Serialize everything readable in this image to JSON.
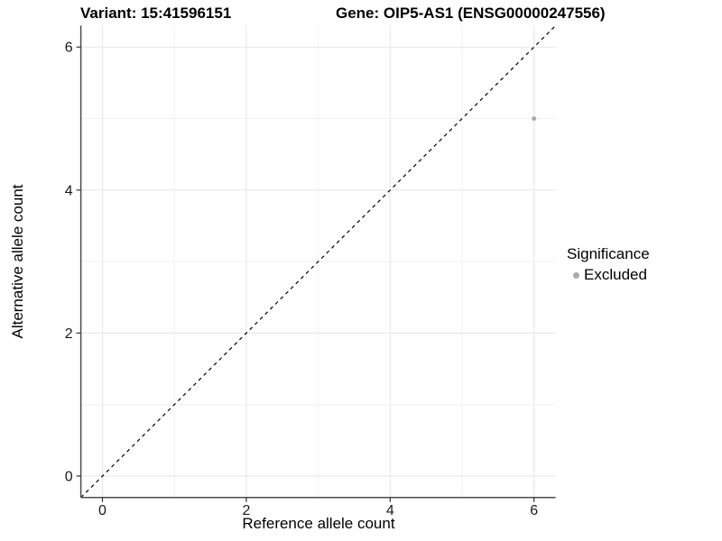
{
  "header": {
    "variant_title": "Variant: 15:41596151",
    "gene_title": "Gene: OIP5-AS1 (ENSG00000247556)"
  },
  "chart_data": {
    "type": "scatter",
    "xlabel": "Reference allele count",
    "ylabel": "Alternative allele count",
    "xlim": [
      -0.3,
      6.3
    ],
    "ylim": [
      -0.3,
      6.3
    ],
    "x_ticks": [
      0,
      2,
      4,
      6
    ],
    "y_ticks": [
      0,
      2,
      4,
      6
    ],
    "x_minor_gridlines": [
      1,
      3,
      5
    ],
    "y_minor_gridlines": [
      1,
      3,
      5
    ],
    "grid": true,
    "identity_line": {
      "style": "dashed",
      "slope": 1,
      "intercept": 0,
      "color": "#000000"
    },
    "series": [
      {
        "name": "Excluded",
        "color": "#aaaaaa",
        "marker_radius": 2.5,
        "points": [
          {
            "x": 6,
            "y": 5
          }
        ]
      }
    ],
    "legend": {
      "title": "Significance",
      "position": "right",
      "entries": [
        {
          "label": "Excluded",
          "color": "#aaaaaa"
        }
      ]
    }
  },
  "colors": {
    "background": "#ffffff",
    "grid_major": "#e5e5e5",
    "grid_minor": "#f0f0f0",
    "axis_line": "#4d4d4d",
    "tick_mark": "#333333",
    "tick_label": "#1a1a1a",
    "point": "#aaaaaa"
  }
}
